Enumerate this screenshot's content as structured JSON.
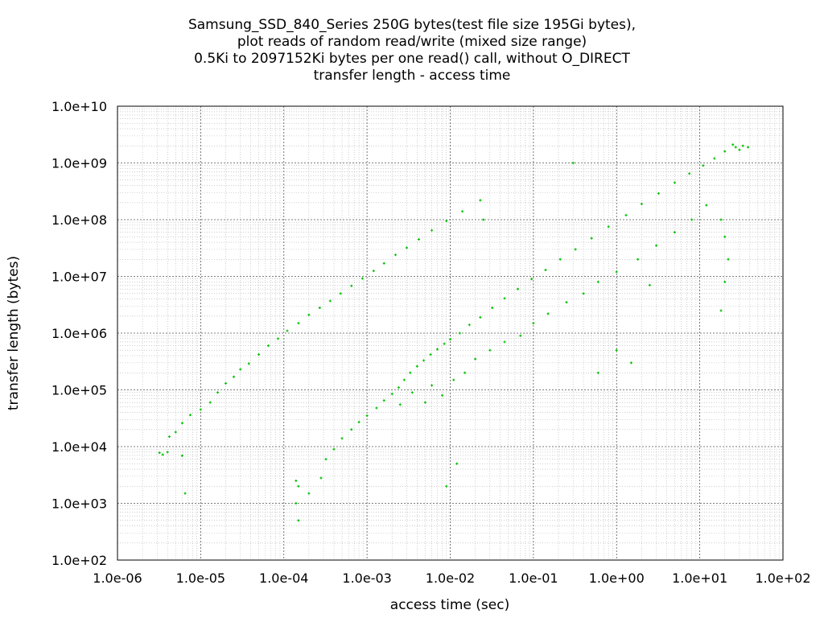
{
  "chart_data": {
    "type": "scatter",
    "title": [
      "Samsung_SSD_840_Series 250G bytes(test file size 195Gi bytes),",
      "plot reads of random read/write (mixed size range)",
      "0.5Ki to 2097152Ki bytes per one read() call, without O_DIRECT",
      "transfer length - access time"
    ],
    "xlabel": "access time (sec)",
    "ylabel": "transfer length (bytes)",
    "x_scale": "log",
    "y_scale": "log",
    "xlim": [
      1e-06,
      100
    ],
    "ylim": [
      100,
      10000000000.0
    ],
    "x_ticks": [
      {
        "value": 1e-06,
        "label": "1.0e-06"
      },
      {
        "value": 1e-05,
        "label": "1.0e-05"
      },
      {
        "value": 0.0001,
        "label": "1.0e-04"
      },
      {
        "value": 0.001,
        "label": "1.0e-03"
      },
      {
        "value": 0.01,
        "label": "1.0e-02"
      },
      {
        "value": 0.1,
        "label": "1.0e-01"
      },
      {
        "value": 1,
        "label": "1.0e+00"
      },
      {
        "value": 10,
        "label": "1.0e+01"
      },
      {
        "value": 100,
        "label": "1.0e+02"
      }
    ],
    "y_ticks": [
      {
        "value": 100,
        "label": "1.0e+02"
      },
      {
        "value": 1000,
        "label": "1.0e+03"
      },
      {
        "value": 10000,
        "label": "1.0e+04"
      },
      {
        "value": 100000,
        "label": "1.0e+05"
      },
      {
        "value": 1000000,
        "label": "1.0e+06"
      },
      {
        "value": 10000000,
        "label": "1.0e+07"
      },
      {
        "value": 100000000,
        "label": "1.0e+08"
      },
      {
        "value": 1000000000,
        "label": "1.0e+09"
      },
      {
        "value": 10000000000,
        "label": "1.0e+10"
      }
    ],
    "grid": true,
    "marker_color": "#00c000",
    "series": [
      {
        "points": [
          [
            3.2e-06,
            7800
          ],
          [
            3.5e-06,
            7200
          ],
          [
            4e-06,
            8000
          ],
          [
            6.5e-06,
            1500
          ],
          [
            6e-06,
            6900
          ],
          [
            4.2e-06,
            15000
          ],
          [
            5e-06,
            18000
          ],
          [
            6e-06,
            26000
          ],
          [
            7.5e-06,
            36000
          ],
          [
            1e-05,
            45000
          ],
          [
            1.3e-05,
            60000
          ],
          [
            1.6e-05,
            90000
          ],
          [
            2e-05,
            130000
          ],
          [
            2.5e-05,
            170000
          ],
          [
            3e-05,
            230000
          ],
          [
            3.8e-05,
            290000
          ],
          [
            5e-05,
            420000
          ],
          [
            6.5e-05,
            600000
          ],
          [
            8.5e-05,
            800000
          ],
          [
            0.00011,
            1100000
          ],
          [
            0.00015,
            1500000
          ],
          [
            0.0002,
            2100000
          ],
          [
            0.00027,
            2800000
          ],
          [
            0.00036,
            3700000
          ],
          [
            0.00048,
            5000000
          ],
          [
            0.00065,
            6800000
          ],
          [
            0.00088,
            9200000
          ],
          [
            0.0012,
            12500000
          ],
          [
            0.0016,
            17000000
          ],
          [
            0.0022,
            24000000
          ],
          [
            0.003,
            32000000
          ],
          [
            0.0042,
            45000000
          ],
          [
            0.006,
            65000000
          ],
          [
            0.009,
            95000000
          ],
          [
            0.014,
            140000000
          ],
          [
            0.023,
            220000000
          ],
          [
            0.00014,
            2500
          ],
          [
            0.00015,
            2000
          ],
          [
            0.00014,
            1000
          ],
          [
            0.00015,
            500
          ],
          [
            0.0002,
            1500
          ],
          [
            0.00028,
            2800
          ],
          [
            0.00032,
            6000
          ],
          [
            0.0004,
            9000
          ],
          [
            0.0005,
            14000
          ],
          [
            0.00065,
            20000
          ],
          [
            0.0008,
            27000
          ],
          [
            0.001,
            35000
          ],
          [
            0.0013,
            48000
          ],
          [
            0.0016,
            65000
          ],
          [
            0.002,
            85000
          ],
          [
            0.0024,
            110000
          ],
          [
            0.0028,
            150000
          ],
          [
            0.0033,
            200000
          ],
          [
            0.004,
            260000
          ],
          [
            0.0048,
            330000
          ],
          [
            0.0058,
            420000
          ],
          [
            0.007,
            520000
          ],
          [
            0.0085,
            650000
          ],
          [
            0.01,
            780000
          ],
          [
            0.013,
            1000000
          ],
          [
            0.017,
            1400000
          ],
          [
            0.023,
            1900000
          ],
          [
            0.032,
            2800000
          ],
          [
            0.045,
            4100000
          ],
          [
            0.065,
            6000000
          ],
          [
            0.095,
            9000000
          ],
          [
            0.14,
            13000000
          ],
          [
            0.21,
            20000000
          ],
          [
            0.32,
            30000000
          ],
          [
            0.5,
            47000000
          ],
          [
            0.8,
            75000000
          ],
          [
            1.3,
            120000000
          ],
          [
            2.0,
            190000000
          ],
          [
            3.2,
            290000000
          ],
          [
            5.0,
            450000000
          ],
          [
            7.5,
            650000000
          ],
          [
            11,
            900000000
          ],
          [
            15,
            1200000000
          ],
          [
            20,
            1600000000
          ],
          [
            27,
            1900000000
          ],
          [
            33,
            2000000000
          ],
          [
            38,
            1900000000
          ],
          [
            25,
            2100000000
          ],
          [
            30,
            1700000000
          ],
          [
            0.0025,
            55000
          ],
          [
            0.0035,
            90000
          ],
          [
            0.005,
            60000
          ],
          [
            0.006,
            120000
          ],
          [
            0.008,
            80000
          ],
          [
            0.011,
            150000
          ],
          [
            0.015,
            200000
          ],
          [
            0.02,
            350000
          ],
          [
            0.03,
            500000
          ],
          [
            0.045,
            700000
          ],
          [
            0.07,
            900000
          ],
          [
            0.1,
            1500000
          ],
          [
            0.15,
            2200000
          ],
          [
            0.25,
            3500000
          ],
          [
            0.4,
            5000000
          ],
          [
            0.6,
            8000000
          ],
          [
            1.0,
            12000000
          ],
          [
            1.8,
            20000000
          ],
          [
            3.0,
            35000000
          ],
          [
            5.0,
            60000000
          ],
          [
            8.0,
            100000000
          ],
          [
            12,
            180000000
          ],
          [
            18,
            100000000
          ],
          [
            20,
            50000000
          ],
          [
            22,
            20000000
          ],
          [
            20,
            8000000
          ],
          [
            18,
            2500000
          ],
          [
            0.009,
            2000
          ],
          [
            0.012,
            5000
          ],
          [
            1.5,
            300000
          ],
          [
            1.0,
            500000
          ],
          [
            0.6,
            200000
          ],
          [
            0.025,
            100000000
          ],
          [
            0.3,
            1000000000
          ],
          [
            2.5,
            7000000
          ]
        ]
      }
    ]
  }
}
